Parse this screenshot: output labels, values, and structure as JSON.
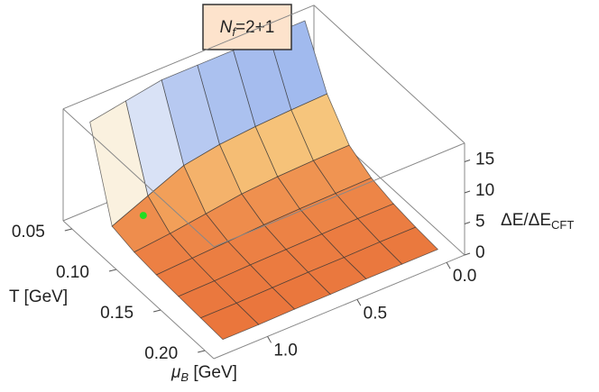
{
  "chart_data": {
    "type": "surface",
    "title": {
      "main": "N",
      "sub": "f",
      "rest": "=2+1"
    },
    "xlabel": "T [GeV]",
    "ylabel": {
      "main": "μ",
      "sub": "B",
      "rest": " [GeV]"
    },
    "zlabel": {
      "main": "ΔE/ΔE",
      "sub": "CFT"
    },
    "T": [
      0.05,
      0.075,
      0.1,
      0.125,
      0.15,
      0.175,
      0.2
    ],
    "mu": [
      0,
      0.2,
      0.4,
      0.6,
      0.8,
      1.0,
      1.2
    ],
    "z": [
      [
        18,
        18,
        18,
        18,
        18,
        17,
        16
      ],
      [
        9.5,
        9.3,
        9,
        8.5,
        7.5,
        5,
        2.5
      ],
      [
        4.5,
        4.4,
        4.2,
        3.8,
        3,
        2.2,
        1.6
      ],
      [
        2.5,
        2.4,
        2.3,
        2.1,
        1.8,
        1.5,
        1.2
      ],
      [
        1.6,
        1.6,
        1.5,
        1.4,
        1.3,
        1.1,
        1.0
      ],
      [
        1.1,
        1.1,
        1.0,
        1.0,
        0.9,
        0.8,
        0.8
      ],
      [
        0.8,
        0.8,
        0.8,
        0.7,
        0.7,
        0.6,
        0.6
      ]
    ],
    "xlim": [
      0.04,
      0.21
    ],
    "ylim": [
      -0.1,
      1.3
    ],
    "zlim": [
      0,
      18
    ],
    "xticks": [
      0.05,
      {
        "value": 0.1,
        "label": "0.10"
      },
      0.15,
      {
        "value": 0.2,
        "label": "0.20"
      }
    ],
    "yticks": [
      {
        "value": 0,
        "label": "0.0"
      },
      0.5,
      {
        "value": 1,
        "label": "1.0"
      }
    ],
    "zticks": [
      0,
      5,
      10,
      15
    ],
    "critical_point": {
      "T": 0.09,
      "mu": 1.1,
      "z": 5,
      "color": "#22dd22"
    }
  }
}
